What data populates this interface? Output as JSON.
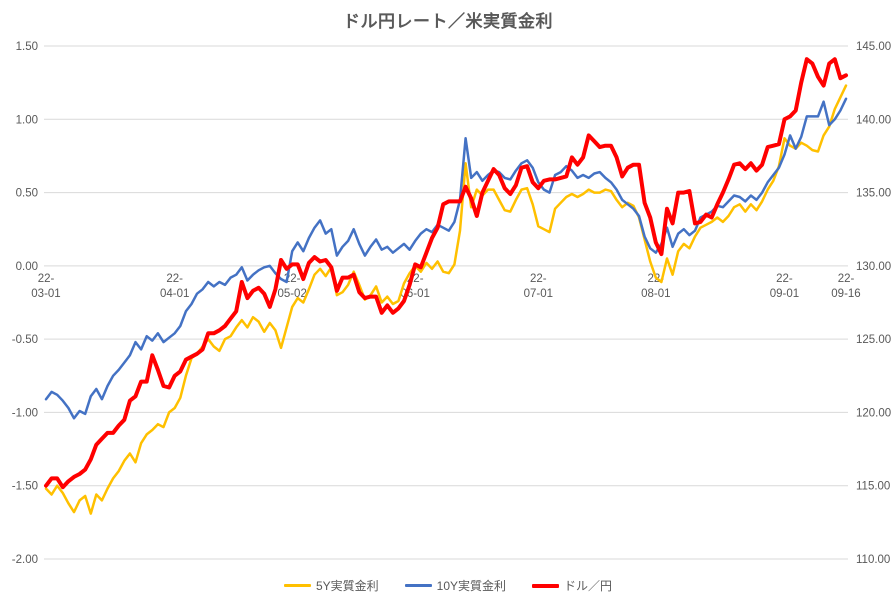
{
  "chart": {
    "background_color": "#FFFFFF",
    "gridline_color": "#D9D9D9",
    "text_color": "#595959",
    "title_color": "#595959"
  },
  "chart_data": {
    "type": "line",
    "title": "ドル円レート／米実質金利",
    "legend_position": "bottom",
    "grid": "horizontal",
    "left_axis": {
      "min": -2.0,
      "max": 1.5,
      "step": 0.5,
      "tick_labels": [
        "1.50",
        "1.00",
        "0.50",
        "0.00",
        "-0.50",
        "-1.00",
        "-1.50",
        "-2.00"
      ]
    },
    "right_axis": {
      "min": 110.0,
      "max": 145.0,
      "step": 5.0,
      "tick_labels": [
        "145.00",
        "140.00",
        "135.00",
        "130.00",
        "125.00",
        "120.00",
        "115.00",
        "110.00"
      ]
    },
    "x_tick_indices": [
      0,
      23,
      44,
      66,
      88,
      109,
      132,
      143
    ],
    "x_tick_labels": [
      "22-03-01",
      "22-04-01",
      "22-05-02",
      "22-06-01",
      "22-07-01",
      "22-08-01",
      "22-09-01",
      "22-09-16"
    ],
    "x": [
      "22-03-01",
      "22-03-02",
      "22-03-03",
      "22-03-04",
      "22-03-07",
      "22-03-08",
      "22-03-09",
      "22-03-10",
      "22-03-11",
      "22-03-14",
      "22-03-15",
      "22-03-16",
      "22-03-17",
      "22-03-18",
      "22-03-21",
      "22-03-22",
      "22-03-23",
      "22-03-24",
      "22-03-25",
      "22-03-28",
      "22-03-29",
      "22-03-30",
      "22-03-31",
      "22-04-01",
      "22-04-04",
      "22-04-05",
      "22-04-06",
      "22-04-07",
      "22-04-08",
      "22-04-11",
      "22-04-12",
      "22-04-13",
      "22-04-14",
      "22-04-15",
      "22-04-18",
      "22-04-19",
      "22-04-20",
      "22-04-21",
      "22-04-22",
      "22-04-25",
      "22-04-26",
      "22-04-27",
      "22-04-28",
      "22-04-29",
      "22-05-02",
      "22-05-03",
      "22-05-04",
      "22-05-05",
      "22-05-06",
      "22-05-09",
      "22-05-10",
      "22-05-11",
      "22-05-12",
      "22-05-13",
      "22-05-16",
      "22-05-17",
      "22-05-18",
      "22-05-19",
      "22-05-20",
      "22-05-23",
      "22-05-24",
      "22-05-25",
      "22-05-26",
      "22-05-27",
      "22-05-30",
      "22-05-31",
      "22-06-01",
      "22-06-02",
      "22-06-03",
      "22-06-06",
      "22-06-07",
      "22-06-08",
      "22-06-09",
      "22-06-10",
      "22-06-13",
      "22-06-14",
      "22-06-15",
      "22-06-16",
      "22-06-17",
      "22-06-20",
      "22-06-21",
      "22-06-22",
      "22-06-23",
      "22-06-24",
      "22-06-27",
      "22-06-28",
      "22-06-29",
      "22-06-30",
      "22-07-01",
      "22-07-04",
      "22-07-05",
      "22-07-06",
      "22-07-07",
      "22-07-08",
      "22-07-11",
      "22-07-12",
      "22-07-13",
      "22-07-14",
      "22-07-15",
      "22-07-18",
      "22-07-19",
      "22-07-20",
      "22-07-21",
      "22-07-22",
      "22-07-25",
      "22-07-26",
      "22-07-27",
      "22-07-28",
      "22-07-29",
      "22-08-01",
      "22-08-02",
      "22-08-03",
      "22-08-04",
      "22-08-05",
      "22-08-08",
      "22-08-09",
      "22-08-10",
      "22-08-11",
      "22-08-12",
      "22-08-15",
      "22-08-16",
      "22-08-17",
      "22-08-18",
      "22-08-19",
      "22-08-22",
      "22-08-23",
      "22-08-24",
      "22-08-25",
      "22-08-26",
      "22-08-29",
      "22-08-30",
      "22-08-31",
      "22-09-01",
      "22-09-02",
      "22-09-05",
      "22-09-06",
      "22-09-07",
      "22-09-08",
      "22-09-09",
      "22-09-12",
      "22-09-13",
      "22-09-14",
      "22-09-15",
      "22-09-16"
    ],
    "series": [
      {
        "name": "5Y実質金利",
        "axis": "left",
        "color": "#FFC000",
        "stroke_width": 2.5,
        "values": [
          -1.52,
          -1.56,
          -1.5,
          -1.55,
          -1.62,
          -1.68,
          -1.6,
          -1.57,
          -1.69,
          -1.56,
          -1.6,
          -1.52,
          -1.45,
          -1.4,
          -1.33,
          -1.28,
          -1.34,
          -1.21,
          -1.15,
          -1.12,
          -1.08,
          -1.1,
          -1.0,
          -0.97,
          -0.9,
          -0.75,
          -0.63,
          -0.6,
          -0.55,
          -0.5,
          -0.55,
          -0.58,
          -0.5,
          -0.48,
          -0.42,
          -0.37,
          -0.42,
          -0.35,
          -0.38,
          -0.45,
          -0.39,
          -0.44,
          -0.56,
          -0.42,
          -0.28,
          -0.22,
          -0.25,
          -0.16,
          -0.06,
          -0.02,
          -0.07,
          -0.01,
          -0.2,
          -0.18,
          -0.13,
          -0.04,
          -0.13,
          -0.23,
          -0.2,
          -0.14,
          -0.25,
          -0.21,
          -0.26,
          -0.24,
          -0.12,
          -0.05,
          0.0,
          -0.04,
          0.02,
          -0.02,
          0.03,
          -0.04,
          -0.05,
          0.01,
          0.24,
          0.7,
          0.4,
          0.52,
          0.48,
          0.52,
          0.52,
          0.45,
          0.38,
          0.37,
          0.45,
          0.52,
          0.53,
          0.42,
          0.27,
          0.25,
          0.23,
          0.39,
          0.43,
          0.47,
          0.49,
          0.47,
          0.49,
          0.52,
          0.5,
          0.5,
          0.52,
          0.51,
          0.45,
          0.4,
          0.43,
          0.41,
          0.33,
          0.18,
          0.03,
          -0.08,
          -0.11,
          0.05,
          -0.06,
          0.1,
          0.15,
          0.12,
          0.2,
          0.26,
          0.28,
          0.3,
          0.33,
          0.3,
          0.34,
          0.4,
          0.42,
          0.37,
          0.42,
          0.38,
          0.44,
          0.52,
          0.58,
          0.68,
          0.87,
          0.82,
          0.8,
          0.84,
          0.82,
          0.79,
          0.78,
          0.89,
          0.95,
          1.07,
          1.15,
          1.23
        ]
      },
      {
        "name": "10Y実質金利",
        "axis": "left",
        "color": "#4472C4",
        "stroke_width": 2.5,
        "values": [
          -0.91,
          -0.86,
          -0.88,
          -0.92,
          -0.97,
          -1.04,
          -0.99,
          -1.01,
          -0.89,
          -0.84,
          -0.91,
          -0.82,
          -0.75,
          -0.71,
          -0.66,
          -0.61,
          -0.52,
          -0.57,
          -0.48,
          -0.51,
          -0.46,
          -0.52,
          -0.49,
          -0.46,
          -0.41,
          -0.31,
          -0.26,
          -0.19,
          -0.16,
          -0.11,
          -0.14,
          -0.11,
          -0.13,
          -0.08,
          -0.06,
          -0.01,
          -0.1,
          -0.06,
          -0.03,
          -0.01,
          0.0,
          -0.05,
          -0.09,
          -0.11,
          0.1,
          0.16,
          0.1,
          0.19,
          0.26,
          0.31,
          0.22,
          0.25,
          0.07,
          0.13,
          0.17,
          0.25,
          0.15,
          0.07,
          0.13,
          0.18,
          0.11,
          0.13,
          0.09,
          0.12,
          0.15,
          0.11,
          0.17,
          0.22,
          0.25,
          0.23,
          0.28,
          0.26,
          0.24,
          0.3,
          0.45,
          0.87,
          0.6,
          0.64,
          0.58,
          0.62,
          0.65,
          0.64,
          0.6,
          0.59,
          0.65,
          0.7,
          0.72,
          0.67,
          0.57,
          0.52,
          0.5,
          0.62,
          0.64,
          0.68,
          0.65,
          0.6,
          0.62,
          0.6,
          0.63,
          0.64,
          0.6,
          0.57,
          0.52,
          0.45,
          0.42,
          0.39,
          0.34,
          0.2,
          0.12,
          0.09,
          0.15,
          0.26,
          0.13,
          0.22,
          0.25,
          0.21,
          0.24,
          0.33,
          0.35,
          0.37,
          0.41,
          0.4,
          0.44,
          0.48,
          0.47,
          0.44,
          0.48,
          0.45,
          0.5,
          0.57,
          0.62,
          0.67,
          0.76,
          0.89,
          0.8,
          0.88,
          1.02,
          1.02,
          1.02,
          1.12,
          0.96,
          1.0,
          1.06,
          1.14
        ]
      },
      {
        "name": "ドル／円",
        "axis": "right",
        "color": "#FF0000",
        "stroke_width": 4,
        "values": [
          115.0,
          115.5,
          115.5,
          114.9,
          115.3,
          115.6,
          115.8,
          116.1,
          116.8,
          117.8,
          118.2,
          118.6,
          118.6,
          119.1,
          119.5,
          120.8,
          121.1,
          122.1,
          122.1,
          123.9,
          122.9,
          121.8,
          121.7,
          122.5,
          122.8,
          123.6,
          123.8,
          124.0,
          124.3,
          125.4,
          125.4,
          125.6,
          125.9,
          126.4,
          126.9,
          128.9,
          127.8,
          128.3,
          128.5,
          128.1,
          127.2,
          128.4,
          130.4,
          129.8,
          130.1,
          130.1,
          129.1,
          130.2,
          130.6,
          130.3,
          130.4,
          129.9,
          128.3,
          129.2,
          129.2,
          129.4,
          128.2,
          127.8,
          127.9,
          127.9,
          126.8,
          127.3,
          126.8,
          127.1,
          127.6,
          128.7,
          130.1,
          129.9,
          130.9,
          131.9,
          132.6,
          134.2,
          134.4,
          134.4,
          134.4,
          135.4,
          134.6,
          133.4,
          135.0,
          135.8,
          136.6,
          136.2,
          135.3,
          134.9,
          135.5,
          136.7,
          136.8,
          135.7,
          135.3,
          135.8,
          135.9,
          135.9,
          136.0,
          136.1,
          137.4,
          136.9,
          137.4,
          138.9,
          138.5,
          138.1,
          138.2,
          138.2,
          137.4,
          136.1,
          136.7,
          136.9,
          136.9,
          134.3,
          133.3,
          131.6,
          130.8,
          133.9,
          132.9,
          135.0,
          135.0,
          135.1,
          132.9,
          133.0,
          133.5,
          133.3,
          134.2,
          135.0,
          135.9,
          136.9,
          137.0,
          136.6,
          137.0,
          136.5,
          136.9,
          138.1,
          138.2,
          138.3,
          140.0,
          140.2,
          140.6,
          142.5,
          144.1,
          143.8,
          142.9,
          142.3,
          143.8,
          144.1,
          142.8,
          143.0
        ]
      }
    ]
  }
}
